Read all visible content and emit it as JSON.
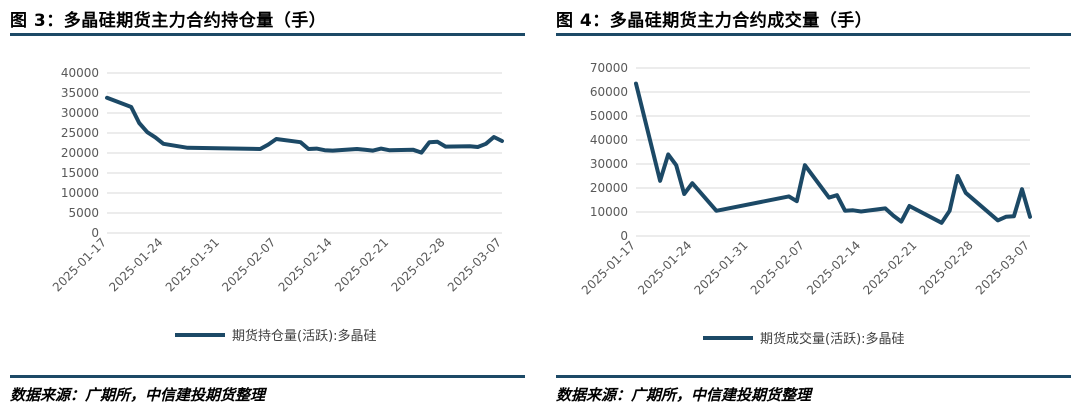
{
  "panels": [
    {
      "title": "图 3：多晶硅期货主力合约持仓量（手）",
      "source": "数据来源：广期所，中信建投期货整理",
      "legend": "期货持仓量(活跃):多晶硅",
      "line_color": "#1c4966"
    },
    {
      "title": "图 4：多晶硅期货主力合约成交量（手）",
      "source": "数据来源：广期所，中信建投期货整理",
      "legend": "期货成交量(活跃):多晶硅",
      "line_color": "#1c4966"
    }
  ],
  "chart_data": [
    {
      "type": "line",
      "title": "图 3：多晶硅期货主力合约持仓量（手）",
      "ylim": [
        0,
        40000
      ],
      "yticks": [
        0,
        5000,
        10000,
        15000,
        20000,
        25000,
        30000,
        35000,
        40000
      ],
      "xlim": [
        "2025-01-17",
        "2025-03-07"
      ],
      "xticks": [
        "2025-01-17",
        "2025-01-24",
        "2025-01-31",
        "2025-02-07",
        "2025-02-14",
        "2025-02-21",
        "2025-02-28",
        "2025-03-07"
      ],
      "grid": "horizontal",
      "legend_position": "bottom",
      "series": [
        {
          "name": "期货持仓量(活跃):多晶硅",
          "x": [
            "2025-01-17",
            "2025-01-20",
            "2025-01-21",
            "2025-01-22",
            "2025-01-23",
            "2025-01-24",
            "2025-01-27",
            "2025-02-05",
            "2025-02-06",
            "2025-02-07",
            "2025-02-10",
            "2025-02-11",
            "2025-02-12",
            "2025-02-13",
            "2025-02-14",
            "2025-02-17",
            "2025-02-18",
            "2025-02-19",
            "2025-02-20",
            "2025-02-21",
            "2025-02-24",
            "2025-02-25",
            "2025-02-26",
            "2025-02-27",
            "2025-02-28",
            "2025-03-03",
            "2025-03-04",
            "2025-03-05",
            "2025-03-06",
            "2025-03-07"
          ],
          "values": [
            33800,
            31500,
            27500,
            25200,
            23900,
            22300,
            21300,
            21000,
            22100,
            23500,
            22700,
            21000,
            21100,
            20700,
            20600,
            21000,
            20800,
            20600,
            21100,
            20700,
            20800,
            20100,
            22700,
            22800,
            21600,
            21700,
            21500,
            22300,
            24000,
            23000
          ]
        }
      ]
    },
    {
      "type": "line",
      "title": "图 4：多晶硅期货主力合约成交量（手）",
      "ylim": [
        0,
        70000
      ],
      "yticks": [
        0,
        10000,
        20000,
        30000,
        40000,
        50000,
        60000,
        70000
      ],
      "xlim": [
        "2025-01-17",
        "2025-03-07"
      ],
      "xticks": [
        "2025-01-17",
        "2025-01-24",
        "2025-01-31",
        "2025-02-07",
        "2025-02-14",
        "2025-02-21",
        "2025-02-28",
        "2025-03-07"
      ],
      "grid": "horizontal",
      "legend_position": "bottom",
      "series": [
        {
          "name": "期货成交量(活跃):多晶硅",
          "x": [
            "2025-01-17",
            "2025-01-20",
            "2025-01-21",
            "2025-01-22",
            "2025-01-23",
            "2025-01-24",
            "2025-01-27",
            "2025-02-05",
            "2025-02-06",
            "2025-02-07",
            "2025-02-10",
            "2025-02-11",
            "2025-02-12",
            "2025-02-13",
            "2025-02-14",
            "2025-02-17",
            "2025-02-18",
            "2025-02-19",
            "2025-02-20",
            "2025-02-24",
            "2025-02-25",
            "2025-02-26",
            "2025-02-27",
            "2025-03-03",
            "2025-03-04",
            "2025-03-05",
            "2025-03-06",
            "2025-03-07"
          ],
          "values": [
            63500,
            23000,
            34000,
            29500,
            17500,
            22000,
            10500,
            16500,
            14500,
            29500,
            16000,
            17000,
            10500,
            10700,
            10200,
            11500,
            8500,
            6000,
            12500,
            5500,
            10500,
            25000,
            18000,
            6500,
            8000,
            8200,
            19500,
            8000
          ]
        }
      ]
    }
  ]
}
